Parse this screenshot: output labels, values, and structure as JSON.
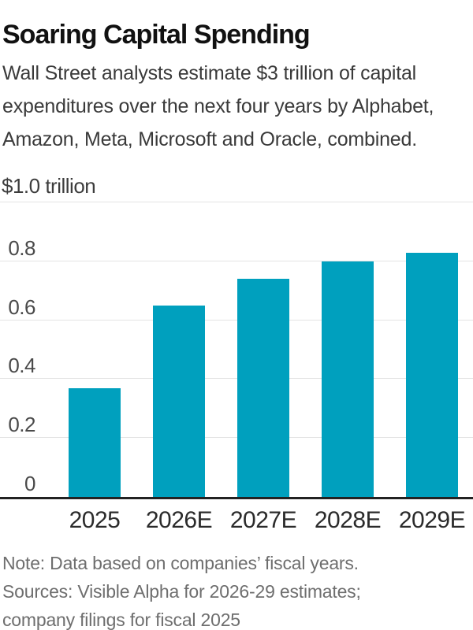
{
  "chart_data": {
    "type": "bar",
    "title": "Soaring Capital Spending",
    "subtitle": "Wall Street analysts estimate $3 trillion of capital expenditures over the next four years by Alphabet, Amazon, Meta, Microsoft and Oracle, combined.",
    "unit_label": "$1.0 trillion",
    "categories": [
      "2025",
      "2026E",
      "2027E",
      "2028E",
      "2029E"
    ],
    "values": [
      0.37,
      0.65,
      0.74,
      0.8,
      0.83
    ],
    "xlabel": "",
    "ylabel": "trillions of dollars",
    "ylim": [
      0,
      1.0
    ],
    "grid": "horizontal",
    "legend": "none",
    "yticks": [
      {
        "value": 1.0,
        "label": ""
      },
      {
        "value": 0.8,
        "label": "0.8"
      },
      {
        "value": 0.6,
        "label": "0.6"
      },
      {
        "value": 0.4,
        "label": "0.4"
      },
      {
        "value": 0.2,
        "label": "0.2"
      },
      {
        "value": 0.0,
        "label": "0"
      }
    ]
  },
  "footer": {
    "note": "Note: Data based on companies’ fiscal years.",
    "sources": "Sources: Visible Alpha for 2026-29 estimates; company filings for fiscal 2025"
  },
  "colors": {
    "bar": "#00a0be",
    "gridline": "#e3e3e3",
    "axis_line": "#222222",
    "tick_text": "#4a4a4a"
  }
}
